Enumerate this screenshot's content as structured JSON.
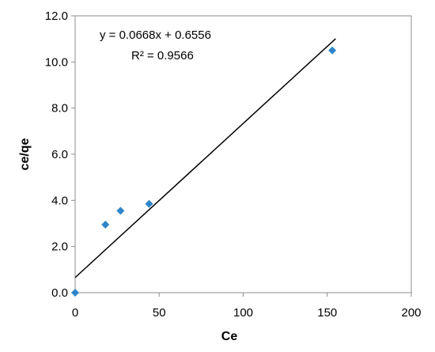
{
  "chart_data": {
    "type": "scatter",
    "xlabel": "Ce",
    "ylabel": "ce/qe",
    "xlim": [
      0,
      200
    ],
    "ylim": [
      0,
      12
    ],
    "x_ticks": [
      0,
      50,
      100,
      150,
      200
    ],
    "y_ticks": [
      "0.0",
      "2.0",
      "4.0",
      "6.0",
      "8.0",
      "10.0",
      "12.0"
    ],
    "grid": false,
    "legend": false,
    "marker_color": "#2E86C8",
    "trendline_color": "#000000",
    "series": [
      {
        "points": [
          {
            "x": 0,
            "y": 0.0
          },
          {
            "x": 18,
            "y": 2.95
          },
          {
            "x": 27,
            "y": 3.55
          },
          {
            "x": 44,
            "y": 3.85
          },
          {
            "x": 153,
            "y": 10.5
          }
        ]
      }
    ],
    "trendline": {
      "slope": 0.0668,
      "intercept": 0.6556,
      "x_start": 0,
      "x_end": 155
    },
    "annotations": {
      "equation": "y = 0.0668x + 0.6556",
      "r2": "R² = 0.9566"
    }
  }
}
